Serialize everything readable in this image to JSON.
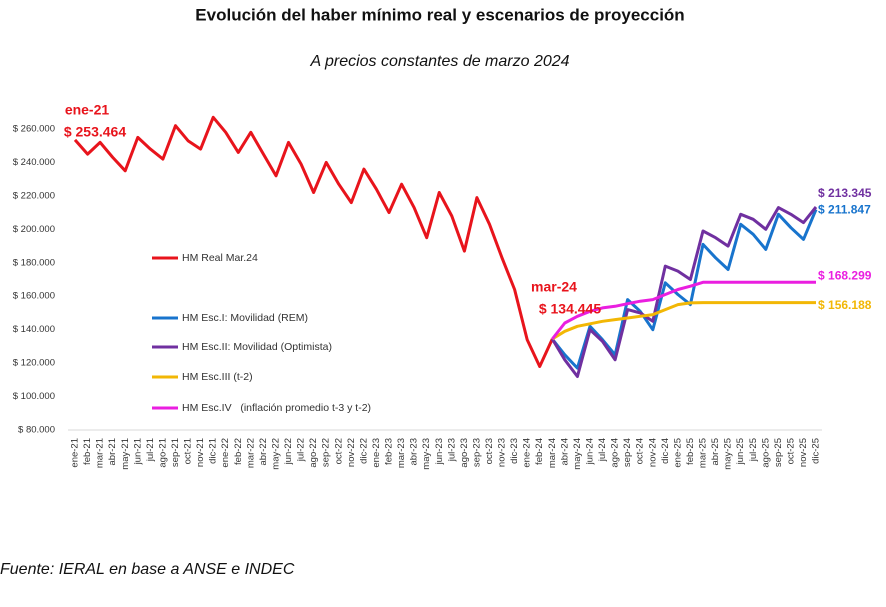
{
  "chart_data": {
    "type": "line",
    "title": "Evolución del haber mínimo real y escenarios de proyección",
    "subtitle": "A precios constantes de marzo 2024",
    "source": "Fuente: IERAL en base a ANSE e INDEC",
    "categories": [
      "ene-21",
      "feb-21",
      "mar-21",
      "abr-21",
      "may-21",
      "jun-21",
      "jul-21",
      "ago-21",
      "sep-21",
      "oct-21",
      "nov-21",
      "dic-21",
      "ene-22",
      "feb-22",
      "mar-22",
      "abr-22",
      "may-22",
      "jun-22",
      "jul-22",
      "ago-22",
      "sep-22",
      "oct-22",
      "nov-22",
      "dic-22",
      "ene-23",
      "feb-23",
      "mar-23",
      "abr-23",
      "may-23",
      "jun-23",
      "jul-23",
      "ago-23",
      "sep-23",
      "oct-23",
      "nov-23",
      "dic-23",
      "ene-24",
      "feb-24",
      "mar-24",
      "abr-24",
      "may-24",
      "jun-24",
      "jul-24",
      "ago-24",
      "sep-24",
      "oct-24",
      "nov-24",
      "dic-24",
      "ene-25",
      "feb-25",
      "mar-25",
      "abr-25",
      "may-25",
      "jun-25",
      "jul-25",
      "ago-25",
      "sep-25",
      "oct-25",
      "nov-25",
      "dic-25"
    ],
    "series": [
      {
        "name": "HM Real Mar.24",
        "color": "#e8141c",
        "values": [
          253464,
          245000,
          252000,
          243000,
          235000,
          255000,
          248000,
          242000,
          262000,
          253000,
          248000,
          267000,
          258000,
          246000,
          258000,
          245000,
          232000,
          252000,
          239000,
          222000,
          240000,
          227000,
          216000,
          236000,
          224000,
          210000,
          227000,
          213000,
          195000,
          222000,
          208000,
          187000,
          219000,
          203000,
          183000,
          164000,
          134000,
          118000,
          134445,
          null,
          null,
          null,
          null,
          null,
          null,
          null,
          null,
          null,
          null,
          null,
          null,
          null,
          null,
          null,
          null,
          null,
          null,
          null,
          null,
          null
        ],
        "value_labels": [
          "$ 253.464",
          null,
          null,
          null,
          null,
          null,
          null,
          null,
          null,
          null,
          null,
          null,
          null,
          null,
          null,
          null,
          null,
          null,
          null,
          null,
          null,
          null,
          null,
          null,
          null,
          null,
          null,
          null,
          null,
          null,
          null,
          null,
          null,
          null,
          null,
          null,
          null,
          null,
          "$ 134.445",
          null,
          null,
          null,
          null,
          null,
          null,
          null,
          null,
          null,
          null,
          null,
          null,
          null,
          null,
          null,
          null,
          null,
          null,
          null,
          null,
          null
        ]
      },
      {
        "name": "HM Esc.I: Movilidad (REM)",
        "color": "#1874cd",
        "values": [
          null,
          null,
          null,
          null,
          null,
          null,
          null,
          null,
          null,
          null,
          null,
          null,
          null,
          null,
          null,
          null,
          null,
          null,
          null,
          null,
          null,
          null,
          null,
          null,
          null,
          null,
          null,
          null,
          null,
          null,
          null,
          null,
          null,
          null,
          null,
          null,
          null,
          null,
          134445,
          125000,
          117000,
          142000,
          134000,
          125000,
          158000,
          151000,
          140000,
          168000,
          161000,
          155000,
          191000,
          183000,
          176000,
          203000,
          197000,
          188000,
          209000,
          201000,
          194000,
          211847
        ],
        "value_labels": [
          null,
          null,
          null,
          null,
          null,
          null,
          null,
          null,
          null,
          null,
          null,
          null,
          null,
          null,
          null,
          null,
          null,
          null,
          null,
          null,
          null,
          null,
          null,
          null,
          null,
          null,
          null,
          null,
          null,
          null,
          null,
          null,
          null,
          null,
          null,
          null,
          null,
          null,
          null,
          null,
          null,
          null,
          null,
          null,
          null,
          null,
          null,
          null,
          null,
          null,
          null,
          null,
          null,
          null,
          null,
          null,
          null,
          null,
          null,
          "$ 211.847"
        ]
      },
      {
        "name": "HM Esc.II: Movilidad (Optimista)",
        "color": "#7030a0",
        "values": [
          null,
          null,
          null,
          null,
          null,
          null,
          null,
          null,
          null,
          null,
          null,
          null,
          null,
          null,
          null,
          null,
          null,
          null,
          null,
          null,
          null,
          null,
          null,
          null,
          null,
          null,
          null,
          null,
          null,
          null,
          null,
          null,
          null,
          null,
          null,
          null,
          null,
          null,
          134445,
          122000,
          112000,
          140000,
          133000,
          122000,
          152000,
          150000,
          145000,
          178000,
          175000,
          170000,
          199000,
          195000,
          190000,
          209000,
          206000,
          200000,
          213000,
          209000,
          204000,
          213345
        ],
        "value_labels": [
          null,
          null,
          null,
          null,
          null,
          null,
          null,
          null,
          null,
          null,
          null,
          null,
          null,
          null,
          null,
          null,
          null,
          null,
          null,
          null,
          null,
          null,
          null,
          null,
          null,
          null,
          null,
          null,
          null,
          null,
          null,
          null,
          null,
          null,
          null,
          null,
          null,
          null,
          null,
          null,
          null,
          null,
          null,
          null,
          null,
          null,
          null,
          null,
          null,
          null,
          null,
          null,
          null,
          null,
          null,
          null,
          null,
          null,
          null,
          "$ 213.345"
        ]
      },
      {
        "name": "HM Esc.III (t-2)",
        "color": "#f2b705",
        "values": [
          null,
          null,
          null,
          null,
          null,
          null,
          null,
          null,
          null,
          null,
          null,
          null,
          null,
          null,
          null,
          null,
          null,
          null,
          null,
          null,
          null,
          null,
          null,
          null,
          null,
          null,
          null,
          null,
          null,
          null,
          null,
          null,
          null,
          null,
          null,
          null,
          null,
          null,
          134445,
          139000,
          142000,
          143500,
          145000,
          146000,
          147000,
          148000,
          149000,
          152000,
          155000,
          156000,
          156188,
          156188,
          156188,
          156188,
          156188,
          156188,
          156188,
          156188,
          156188,
          156188
        ],
        "value_labels": [
          null,
          null,
          null,
          null,
          null,
          null,
          null,
          null,
          null,
          null,
          null,
          null,
          null,
          null,
          null,
          null,
          null,
          null,
          null,
          null,
          null,
          null,
          null,
          null,
          null,
          null,
          null,
          null,
          null,
          null,
          null,
          null,
          null,
          null,
          null,
          null,
          null,
          null,
          null,
          null,
          null,
          null,
          null,
          null,
          null,
          null,
          null,
          null,
          null,
          null,
          null,
          null,
          null,
          null,
          null,
          null,
          null,
          null,
          null,
          "$ 156.188"
        ]
      },
      {
        "name": "HM Esc.IV   (inflación promedio t-3 y t-2)",
        "color": "#ea1ee0",
        "values": [
          null,
          null,
          null,
          null,
          null,
          null,
          null,
          null,
          null,
          null,
          null,
          null,
          null,
          null,
          null,
          null,
          null,
          null,
          null,
          null,
          null,
          null,
          null,
          null,
          null,
          null,
          null,
          null,
          null,
          null,
          null,
          null,
          null,
          null,
          null,
          null,
          null,
          null,
          134445,
          144000,
          148000,
          151000,
          153000,
          154000,
          155500,
          157000,
          158000,
          161000,
          164000,
          166000,
          168299,
          168299,
          168299,
          168299,
          168299,
          168299,
          168299,
          168299,
          168299,
          168299
        ],
        "value_labels": [
          null,
          null,
          null,
          null,
          null,
          null,
          null,
          null,
          null,
          null,
          null,
          null,
          null,
          null,
          null,
          null,
          null,
          null,
          null,
          null,
          null,
          null,
          null,
          null,
          null,
          null,
          null,
          null,
          null,
          null,
          null,
          null,
          null,
          null,
          null,
          null,
          null,
          null,
          null,
          null,
          null,
          null,
          null,
          null,
          null,
          null,
          null,
          null,
          null,
          null,
          null,
          null,
          null,
          null,
          null,
          null,
          null,
          null,
          null,
          "$ 168.299"
        ]
      }
    ],
    "ylim": [
      80000,
      260000
    ],
    "yticks": [
      {
        "value": 80000,
        "label": "$ 80.000"
      },
      {
        "value": 100000,
        "label": "$ 100.000"
      },
      {
        "value": 120000,
        "label": "$ 120.000"
      },
      {
        "value": 140000,
        "label": "$ 140.000"
      },
      {
        "value": 160000,
        "label": "$ 160.000"
      },
      {
        "value": 180000,
        "label": "$ 180.000"
      },
      {
        "value": 200000,
        "label": "$ 200.000"
      },
      {
        "value": 220000,
        "label": "$ 220.000"
      },
      {
        "value": 240000,
        "label": "$ 240.000"
      },
      {
        "value": 260000,
        "label": "$ 260.000"
      }
    ],
    "grid": false,
    "legend": "inside-left"
  }
}
